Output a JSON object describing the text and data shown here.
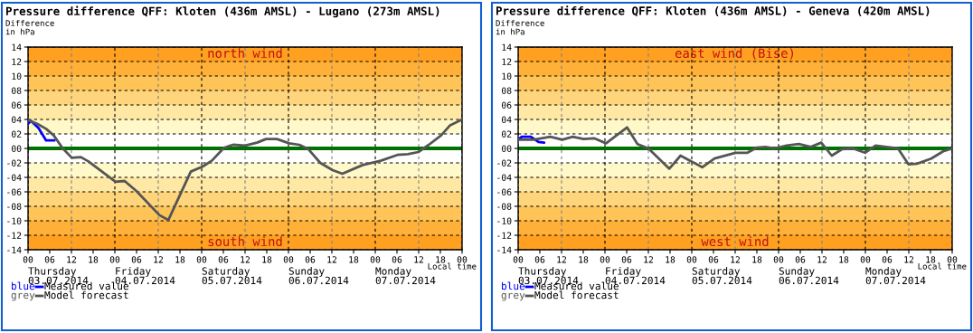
{
  "chart_data": [
    {
      "type": "line",
      "title": "Pressure difference QFF: Kloten (436m AMSL) - Lugano (273m AMSL)",
      "ylabel": "Difference\nin hPa",
      "xlabel": "Local time",
      "xlim": [
        0,
        120
      ],
      "ylim": [
        -14,
        14
      ],
      "xticks": [
        {
          "value": 0,
          "label": "00"
        },
        {
          "value": 6,
          "label": "06"
        },
        {
          "value": 12,
          "label": "12"
        },
        {
          "value": 18,
          "label": "18"
        },
        {
          "value": 24,
          "label": "00"
        },
        {
          "value": 30,
          "label": "06"
        },
        {
          "value": 36,
          "label": "12"
        },
        {
          "value": 42,
          "label": "18"
        },
        {
          "value": 48,
          "label": "00"
        },
        {
          "value": 54,
          "label": "06"
        },
        {
          "value": 60,
          "label": "12"
        },
        {
          "value": 66,
          "label": "18"
        },
        {
          "value": 72,
          "label": "00"
        },
        {
          "value": 78,
          "label": "06"
        },
        {
          "value": 84,
          "label": "12"
        },
        {
          "value": 90,
          "label": "18"
        },
        {
          "value": 96,
          "label": "00"
        },
        {
          "value": 102,
          "label": "06"
        },
        {
          "value": 108,
          "label": "12"
        },
        {
          "value": 114,
          "label": "18"
        },
        {
          "value": 120,
          "label": "00"
        }
      ],
      "yticks": [
        {
          "value": 14,
          "label": "14"
        },
        {
          "value": 12,
          "label": "12"
        },
        {
          "value": 10,
          "label": "10"
        },
        {
          "value": 8,
          "label": "08"
        },
        {
          "value": 6,
          "label": "06"
        },
        {
          "value": 4,
          "label": "04"
        },
        {
          "value": 2,
          "label": "02"
        },
        {
          "value": 0,
          "label": "00"
        },
        {
          "value": -2,
          "label": "-02"
        },
        {
          "value": -4,
          "label": "-04"
        },
        {
          "value": -6,
          "label": "-06"
        },
        {
          "value": -8,
          "label": "-08"
        },
        {
          "value": -10,
          "label": "-10"
        },
        {
          "value": -12,
          "label": "-12"
        },
        {
          "value": -14,
          "label": "-14"
        }
      ],
      "grid": true,
      "legend": "bottom left",
      "bands": [
        {
          "axis": "y",
          "from": 12,
          "to": 14,
          "color": "#ffa020",
          "label": "north wind"
        },
        {
          "axis": "y",
          "from": 10,
          "to": 12,
          "color": "#ffb038"
        },
        {
          "axis": "y",
          "from": 8,
          "to": 10,
          "color": "#ffc458"
        },
        {
          "axis": "y",
          "from": 6,
          "to": 8,
          "color": "#ffd57c"
        },
        {
          "axis": "y",
          "from": 4,
          "to": 6,
          "color": "#ffe8a4"
        },
        {
          "axis": "y",
          "from": 2,
          "to": 4,
          "color": "#fff8c8"
        },
        {
          "axis": "y",
          "from": -4,
          "to": -2,
          "color": "#fff8c8"
        },
        {
          "axis": "y",
          "from": -6,
          "to": -4,
          "color": "#ffe8a4"
        },
        {
          "axis": "y",
          "from": -8,
          "to": -6,
          "color": "#ffd57c"
        },
        {
          "axis": "y",
          "from": -10,
          "to": -8,
          "color": "#ffc458"
        },
        {
          "axis": "y",
          "from": -12,
          "to": -10,
          "color": "#ffb038"
        },
        {
          "axis": "y",
          "from": -14,
          "to": -12,
          "color": "#ffa020",
          "label": "south wind"
        }
      ],
      "ref_lines": [
        {
          "axis": "y",
          "value": 0,
          "color": "#007000"
        }
      ],
      "annotations": [
        "Thursday\n03.07.2014",
        "Friday\n04.07.2014",
        "Saturday\n05.07.2014",
        "Sunday\n06.07.2014",
        "Monday\n07.07.2014",
        "blue",
        "grey"
      ],
      "series": [
        {
          "name": "Measured value",
          "color": "#0000ff",
          "x": [
            0,
            0.8,
            2.9,
            5,
            7.3
          ],
          "values": [
            3.4,
            3.8,
            2.8,
            1.1,
            1.1
          ]
        },
        {
          "name": "Model forecast",
          "color": "#555555",
          "x": [
            0,
            2.5,
            5,
            7.1,
            9.6,
            12.1,
            14.6,
            16.7,
            24.2,
            26.7,
            30,
            36.3,
            38.8,
            45,
            48.3,
            50.8,
            54.2,
            56.7,
            60,
            63.3,
            65.8,
            68.8,
            72.2,
            75,
            77.5,
            80.8,
            84.2,
            86.9,
            92.5,
            97.5,
            102.1,
            105,
            107.9,
            110.8,
            114.2,
            116.7,
            120
          ],
          "values": [
            3.9,
            3.4,
            2.7,
            1.8,
            0,
            -1.3,
            -1.2,
            -1.8,
            -4.6,
            -4.5,
            -5.9,
            -9.2,
            -9.9,
            -3.2,
            -2.5,
            -1.7,
            0.1,
            0.5,
            0.4,
            0.8,
            1.3,
            1.3,
            0.7,
            0.5,
            -0.1,
            -2,
            -3,
            -3.5,
            -2.3,
            -1.7,
            -0.9,
            -0.8,
            -0.5,
            0.5,
            1.8,
            3.2,
            4
          ]
        }
      ]
    },
    {
      "type": "line",
      "title": "Pressure difference QFF: Kloten (436m AMSL) - Geneva (420m AMSL)",
      "ylabel": "Difference\nin hPa",
      "xlabel": "Local time",
      "xlim": [
        0,
        120
      ],
      "ylim": [
        -14,
        14
      ],
      "xticks": [
        {
          "value": 0,
          "label": "00"
        },
        {
          "value": 6,
          "label": "06"
        },
        {
          "value": 12,
          "label": "12"
        },
        {
          "value": 18,
          "label": "18"
        },
        {
          "value": 24,
          "label": "00"
        },
        {
          "value": 30,
          "label": "06"
        },
        {
          "value": 36,
          "label": "12"
        },
        {
          "value": 42,
          "label": "18"
        },
        {
          "value": 48,
          "label": "00"
        },
        {
          "value": 54,
          "label": "06"
        },
        {
          "value": 60,
          "label": "12"
        },
        {
          "value": 66,
          "label": "18"
        },
        {
          "value": 72,
          "label": "00"
        },
        {
          "value": 78,
          "label": "06"
        },
        {
          "value": 84,
          "label": "12"
        },
        {
          "value": 90,
          "label": "18"
        },
        {
          "value": 96,
          "label": "00"
        },
        {
          "value": 102,
          "label": "06"
        },
        {
          "value": 108,
          "label": "12"
        },
        {
          "value": 114,
          "label": "18"
        },
        {
          "value": 120,
          "label": "00"
        }
      ],
      "yticks": [
        {
          "value": 14,
          "label": "14"
        },
        {
          "value": 12,
          "label": "12"
        },
        {
          "value": 10,
          "label": "10"
        },
        {
          "value": 8,
          "label": "08"
        },
        {
          "value": 6,
          "label": "06"
        },
        {
          "value": 4,
          "label": "04"
        },
        {
          "value": 2,
          "label": "02"
        },
        {
          "value": 0,
          "label": "00"
        },
        {
          "value": -2,
          "label": "-02"
        },
        {
          "value": -4,
          "label": "-04"
        },
        {
          "value": -6,
          "label": "-06"
        },
        {
          "value": -8,
          "label": "-08"
        },
        {
          "value": -10,
          "label": "-10"
        },
        {
          "value": -12,
          "label": "-12"
        },
        {
          "value": -14,
          "label": "-14"
        }
      ],
      "grid": true,
      "legend": "bottom left",
      "bands": [
        {
          "axis": "y",
          "from": 12,
          "to": 14,
          "color": "#ffa020",
          "label": "east wind (Bise)"
        },
        {
          "axis": "y",
          "from": 10,
          "to": 12,
          "color": "#ffb038"
        },
        {
          "axis": "y",
          "from": 8,
          "to": 10,
          "color": "#ffc458"
        },
        {
          "axis": "y",
          "from": 6,
          "to": 8,
          "color": "#ffd57c"
        },
        {
          "axis": "y",
          "from": 4,
          "to": 6,
          "color": "#ffe8a4"
        },
        {
          "axis": "y",
          "from": 2,
          "to": 4,
          "color": "#fff8c8"
        },
        {
          "axis": "y",
          "from": -4,
          "to": -2,
          "color": "#fff8c8"
        },
        {
          "axis": "y",
          "from": -6,
          "to": -4,
          "color": "#ffe8a4"
        },
        {
          "axis": "y",
          "from": -8,
          "to": -6,
          "color": "#ffd57c"
        },
        {
          "axis": "y",
          "from": -10,
          "to": -8,
          "color": "#ffc458"
        },
        {
          "axis": "y",
          "from": -12,
          "to": -10,
          "color": "#ffb038"
        },
        {
          "axis": "y",
          "from": -14,
          "to": -12,
          "color": "#ffa020",
          "label": "west wind"
        }
      ],
      "ref_lines": [
        {
          "axis": "y",
          "value": 0,
          "color": "#007000"
        }
      ],
      "annotations": [
        "Thursday\n03.07.2014",
        "Friday\n04.07.2014",
        "Saturday\n05.07.2014",
        "Sunday\n06.07.2014",
        "Monday\n07.07.2014",
        "blue",
        "grey"
      ],
      "series": [
        {
          "name": "Measured value",
          "color": "#0000ff",
          "x": [
            0,
            1,
            3.5,
            5.6,
            7.2
          ],
          "values": [
            1.2,
            1.6,
            1.6,
            0.9,
            0.8
          ]
        },
        {
          "name": "Model forecast",
          "color": "#555555",
          "x": [
            0,
            4.3,
            8.9,
            12.2,
            15.1,
            18.1,
            21,
            24.3,
            30.1,
            33,
            36,
            41.8,
            44.9,
            50.9,
            54.3,
            60.1,
            63.4,
            65.9,
            68.4,
            70.9,
            74.2,
            77.6,
            80.9,
            83.8,
            86.7,
            89.6,
            92.5,
            95.9,
            98.8,
            101.7,
            105,
            107.9,
            110.4,
            114.2,
            117.5,
            120
          ],
          "values": [
            1.2,
            1.2,
            1.6,
            1.2,
            1.6,
            1.3,
            1.4,
            0.7,
            2.9,
            0.6,
            0,
            -2.8,
            -1,
            -2.6,
            -1.4,
            -0.6,
            -0.6,
            0.1,
            0.2,
            0,
            0.4,
            0.6,
            0.2,
            0.8,
            -1,
            -0.1,
            0,
            -0.6,
            0.4,
            0.2,
            0,
            -2.2,
            -2.1,
            -1.4,
            -0.4,
            0
          ]
        }
      ]
    }
  ]
}
